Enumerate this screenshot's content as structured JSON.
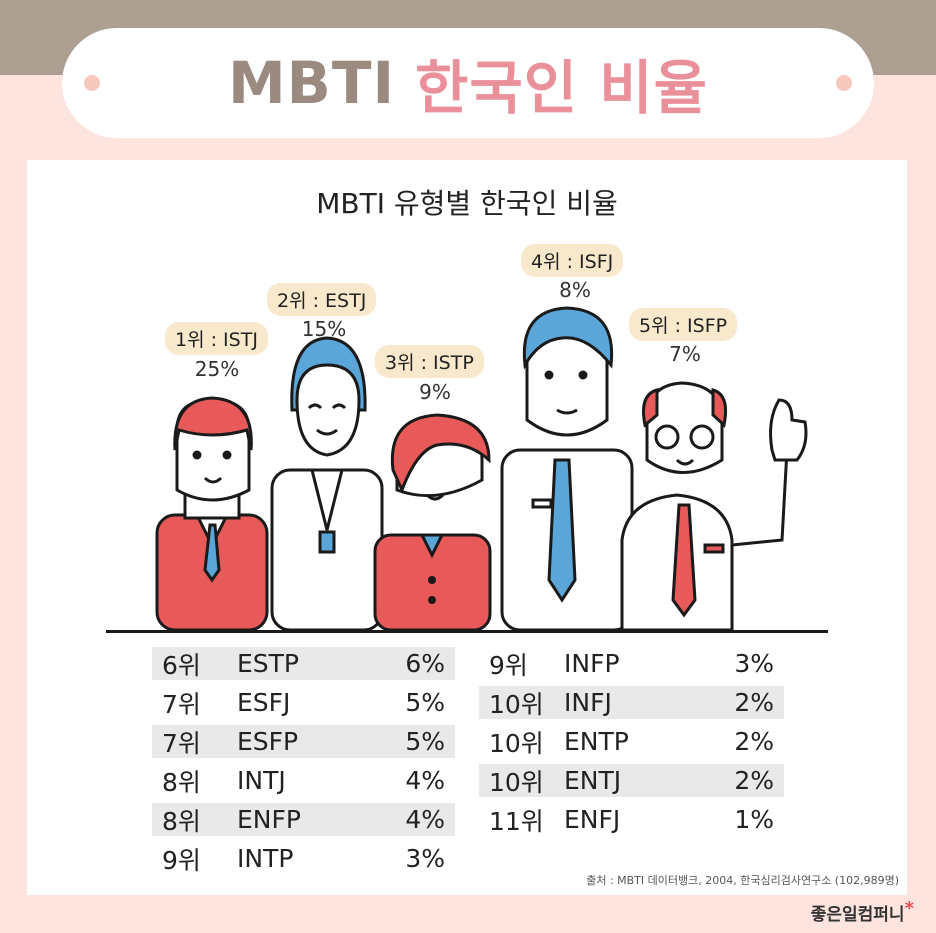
{
  "header": {
    "title_en": "MBTI",
    "title_ko": "한국인 비율"
  },
  "card": {
    "subtitle": "MBTI 유형별 한국인 비율"
  },
  "top_five": [
    {
      "label": "1위 : ISTJ",
      "pct": "25%"
    },
    {
      "label": "2위 : ESTJ",
      "pct": "15%"
    },
    {
      "label": "3위 : ISTP",
      "pct": "9%"
    },
    {
      "label": "4위 : ISFJ",
      "pct": "8%"
    },
    {
      "label": "5위 : ISFP",
      "pct": "7%"
    }
  ],
  "left_table": [
    {
      "rank": "6위",
      "type": "ESTP",
      "pct": "6%"
    },
    {
      "rank": "7위",
      "type": "ESFJ",
      "pct": "5%"
    },
    {
      "rank": "7위",
      "type": "ESFP",
      "pct": "5%"
    },
    {
      "rank": "8위",
      "type": "INTJ",
      "pct": "4%"
    },
    {
      "rank": "8위",
      "type": "ENFP",
      "pct": "4%"
    },
    {
      "rank": "9위",
      "type": "INTP",
      "pct": "3%"
    }
  ],
  "right_table": [
    {
      "rank": "9위",
      "type": "INFP",
      "pct": "3%"
    },
    {
      "rank": "10위",
      "type": "INFJ",
      "pct": "2%"
    },
    {
      "rank": "10위",
      "type": "ENTP",
      "pct": "2%"
    },
    {
      "rank": "10위",
      "type": "ENTJ",
      "pct": "2%"
    },
    {
      "rank": "11위",
      "type": "ENFJ",
      "pct": "1%"
    }
  ],
  "source": "출처 : MBTI 데이터뱅크, 2004, 한국심리검사연구소 (102,989명)",
  "brand": {
    "name": "좋은일컴퍼니",
    "mark": "*"
  },
  "colors": {
    "background": "#fde4de",
    "band": "#ae9f93",
    "title_gray": "#9a8a80",
    "title_pink": "#e9909a",
    "red": "#e85a5a",
    "blue": "#5aa6d9",
    "label_bg": "#f8e8cc"
  }
}
